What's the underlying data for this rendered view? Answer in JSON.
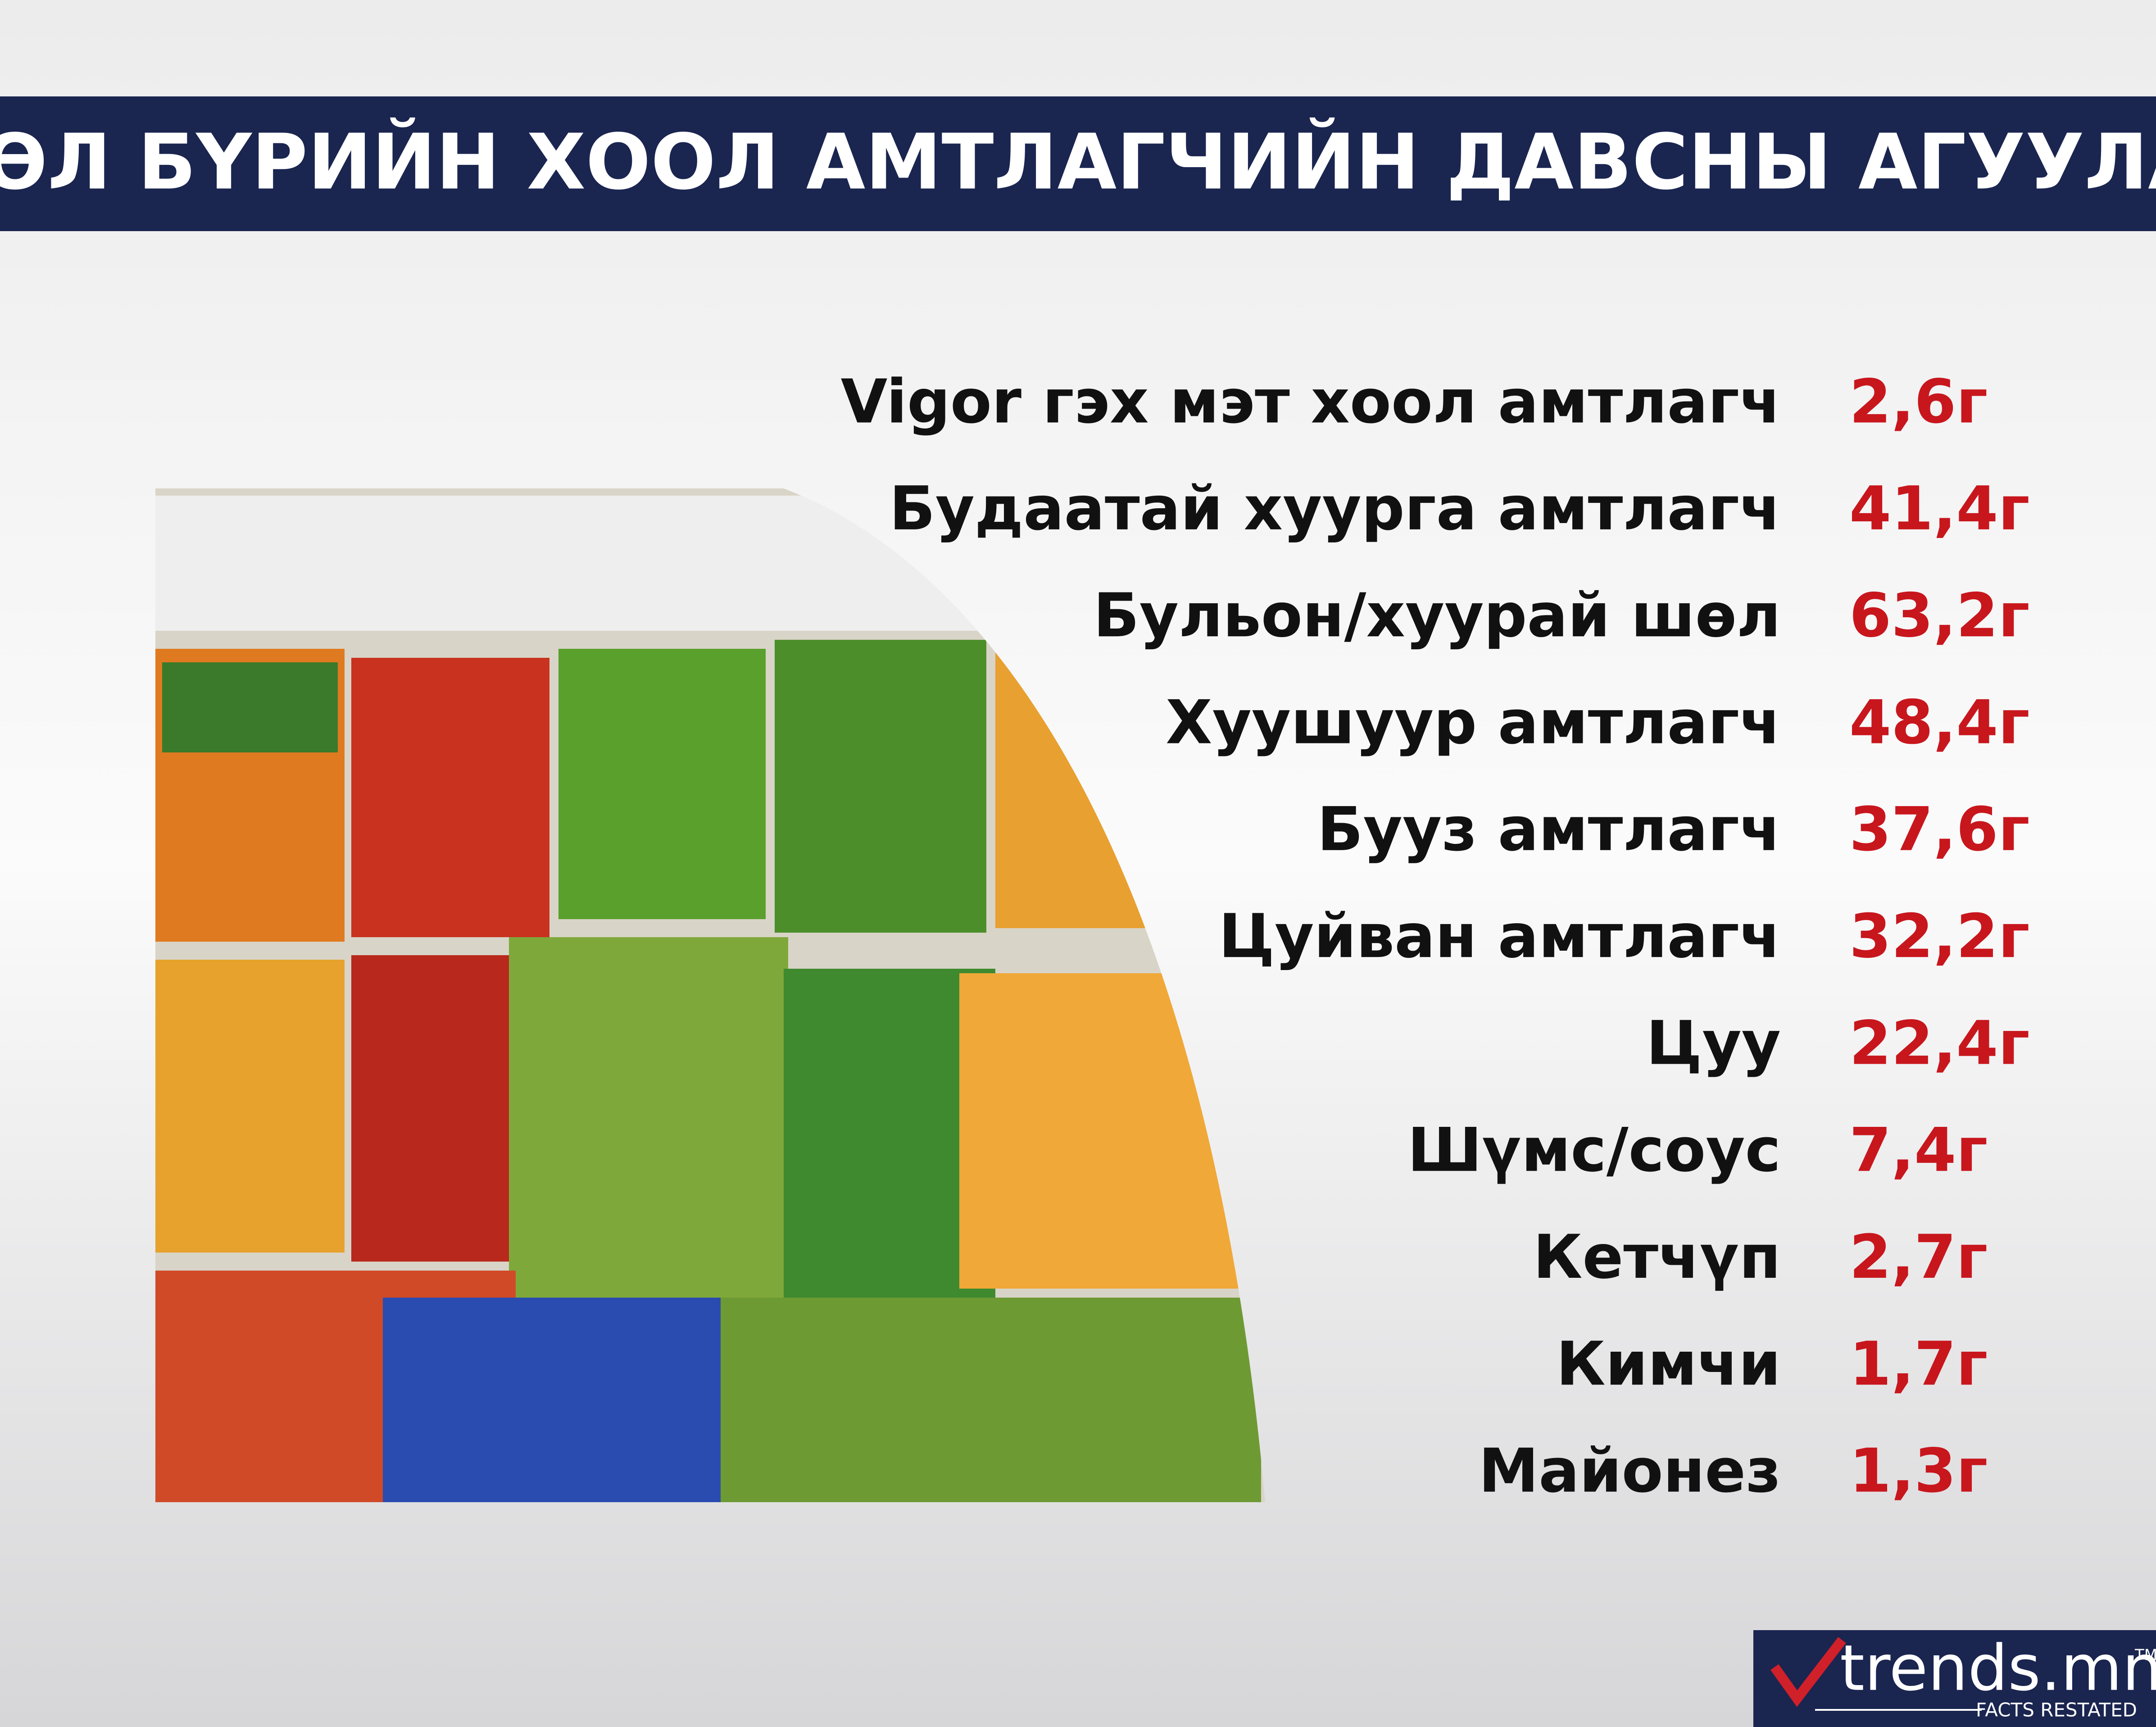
{
  "title": "ТӨРӨЛ БҮРИЙН ХООЛ АМТЛАГЧИЙН ДАВСНЫ АГУУЛАМЖ",
  "items": [
    {
      "label": "Vigor гэх мэт хоол амтлагч",
      "value": "2,6г"
    },
    {
      "label": "Будаатай хуурга амтлагч",
      "value": "41,4г"
    },
    {
      "label": "Бульон/хуурай шөл",
      "value": "63,2г"
    },
    {
      "label": "Хуушуур амтлагч",
      "value": "48,4г"
    },
    {
      "label": "Бууз амтлагч",
      "value": "37,6г"
    },
    {
      "label": "Цуйван амтлагч",
      "value": "32,2г"
    },
    {
      "label": "Цуу",
      "value": "22,4г"
    },
    {
      "label": "Шүмс/соус",
      "value": "7,4г"
    },
    {
      "label": "Кетчүп",
      "value": "2,7г"
    },
    {
      "label": "Кимчи",
      "value": "1,7г"
    },
    {
      "label": "Майонез",
      "value": "1,3г"
    }
  ],
  "logo": {
    "name": "trends.mn",
    "mark": "TM",
    "tagline": "FACTS RESTATED"
  }
}
